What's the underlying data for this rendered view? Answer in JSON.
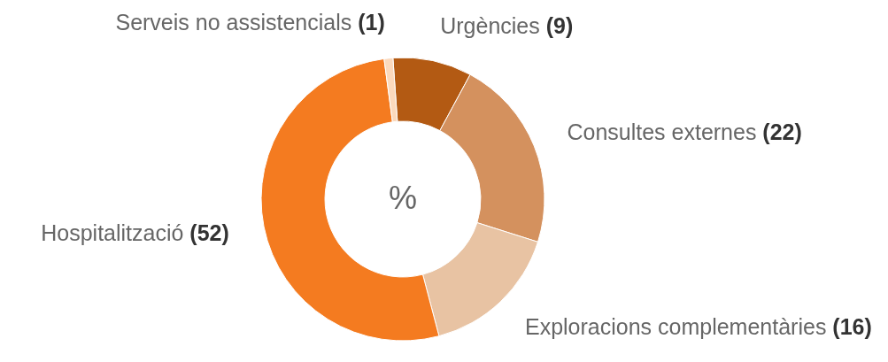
{
  "chart_data": {
    "type": "donut",
    "categories": [
      "Urgències",
      "Consultes externes",
      "Exploracions complementàries",
      "Hospitalització",
      "Serveis no assistencials"
    ],
    "values": [
      9,
      22,
      16,
      52,
      1
    ],
    "value_labels": [
      "(9)",
      "(22)",
      "(16)",
      "(52)",
      "(1)"
    ],
    "colors": [
      "#b35a13",
      "#d4915e",
      "#e8c3a3",
      "#f47b20",
      "#fbd9bc"
    ],
    "annotations": [
      "%"
    ]
  }
}
